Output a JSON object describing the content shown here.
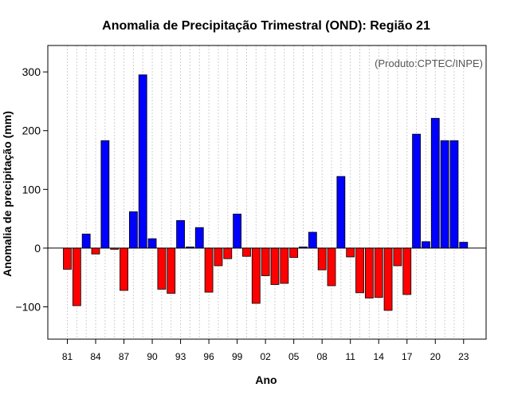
{
  "chart_data": {
    "type": "bar",
    "title": "Anomalia de Precipitação Trimestral (OND): Região 21",
    "xlabel": "Ano",
    "ylabel": "Anomalia de precipitação (mm)",
    "annotation": "(Produto:CPTEC/INPE)",
    "ylim": [
      -155,
      345
    ],
    "yticks": [
      -100,
      0,
      100,
      200,
      300
    ],
    "xtick_labels": [
      "81",
      "84",
      "87",
      "90",
      "93",
      "96",
      "99",
      "02",
      "05",
      "08",
      "11",
      "14",
      "17",
      "20",
      "23"
    ],
    "categories": [
      "1981",
      "1982",
      "1983",
      "1984",
      "1985",
      "1986",
      "1987",
      "1988",
      "1989",
      "1990",
      "1991",
      "1992",
      "1993",
      "1994",
      "1995",
      "1996",
      "1997",
      "1998",
      "1999",
      "2000",
      "2001",
      "2002",
      "2003",
      "2004",
      "2005",
      "2006",
      "2007",
      "2008",
      "2009",
      "2010",
      "2011",
      "2012",
      "2013",
      "2014",
      "2015",
      "2016",
      "2017",
      "2018",
      "2019",
      "2020",
      "2021",
      "2022",
      "2023"
    ],
    "values": [
      -36,
      -98,
      24,
      -10,
      183,
      -2,
      -72,
      62,
      295,
      16,
      -70,
      -77,
      47,
      2,
      35,
      -75,
      -30,
      -18,
      58,
      -14,
      -94,
      -47,
      -62,
      -60,
      -16,
      2,
      27,
      -37,
      -64,
      122,
      -15,
      -76,
      -85,
      -84,
      -106,
      -30,
      -79,
      194,
      11,
      221,
      183,
      183,
      10
    ],
    "colors": {
      "positive": "#0000ff",
      "negative": "#ff0000",
      "axis": "#000000",
      "grid": "#cfcfcf"
    },
    "grid": true
  }
}
